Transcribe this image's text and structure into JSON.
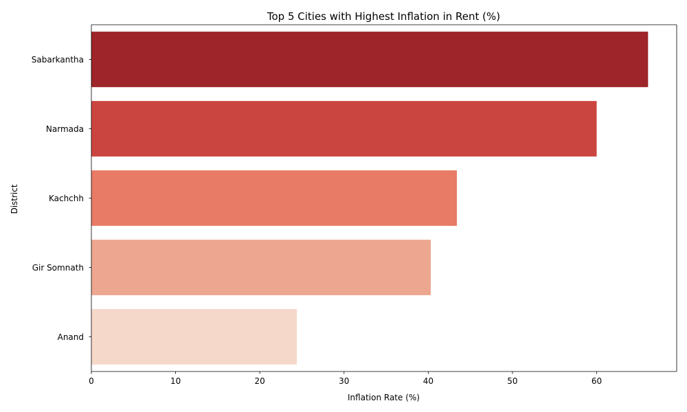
{
  "chart_data": {
    "type": "bar",
    "orientation": "horizontal",
    "title": "Top 5 Cities with Highest Inflation in Rent (%)",
    "xlabel": "Inflation Rate (%)",
    "ylabel": "District",
    "categories": [
      "Sabarkantha",
      "Narmada",
      "Kachchh",
      "Gir Somnath",
      "Anand"
    ],
    "values": [
      66.1,
      60.0,
      43.4,
      40.3,
      24.4
    ],
    "colors": [
      "#9e252a",
      "#cb4540",
      "#e87b65",
      "#eda791",
      "#f6d8cb"
    ],
    "xlim": [
      0,
      69.5
    ],
    "xticks": [
      0,
      10,
      20,
      30,
      40,
      50,
      60
    ],
    "grid": false,
    "legend": "none"
  }
}
